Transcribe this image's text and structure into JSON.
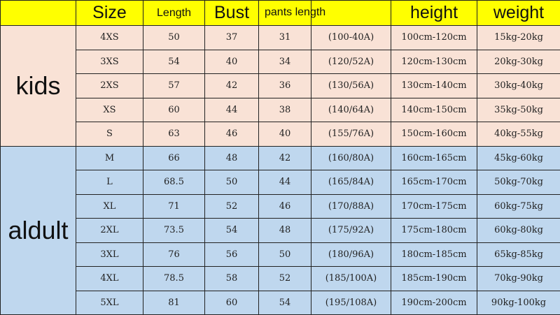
{
  "colors": {
    "header": "#ffff00",
    "kids": "#f9e2d6",
    "adult": "#bfd7ee"
  },
  "headers": {
    "size": "Size",
    "length": "Length",
    "bust": "Bust",
    "pants_length": "pants length",
    "height": "height",
    "weight": "weight"
  },
  "groups": {
    "kids": "kids",
    "adult": "aldult"
  },
  "kids_rows": [
    {
      "size": "4XS",
      "length": "50",
      "bust": "37",
      "pants": "31",
      "code": "(100-40A)",
      "height": "100cm-120cm",
      "weight": "15kg-20kg"
    },
    {
      "size": "3XS",
      "length": "54",
      "bust": "40",
      "pants": "34",
      "code": "(120/52A)",
      "height": "120cm-130cm",
      "weight": "20kg-30kg"
    },
    {
      "size": "2XS",
      "length": "57",
      "bust": "42",
      "pants": "36",
      "code": "(130/56A)",
      "height": "130cm-140cm",
      "weight": "30kg-40kg"
    },
    {
      "size": "XS",
      "length": "60",
      "bust": "44",
      "pants": "38",
      "code": "(140/64A)",
      "height": "140cm-150cm",
      "weight": "35kg-50kg"
    },
    {
      "size": "S",
      "length": "63",
      "bust": "46",
      "pants": "40",
      "code": "(155/76A)",
      "height": "150cm-160cm",
      "weight": "40kg-55kg"
    }
  ],
  "adult_rows": [
    {
      "size": "M",
      "length": "66",
      "bust": "48",
      "pants": "42",
      "code": "(160/80A)",
      "height": "160cm-165cm",
      "weight": "45kg-60kg"
    },
    {
      "size": "L",
      "length": "68.5",
      "bust": "50",
      "pants": "44",
      "code": "(165/84A)",
      "height": "165cm-170cm",
      "weight": "50kg-70kg"
    },
    {
      "size": "XL",
      "length": "71",
      "bust": "52",
      "pants": "46",
      "code": "(170/88A)",
      "height": "170cm-175cm",
      "weight": "60kg-75kg"
    },
    {
      "size": "2XL",
      "length": "73.5",
      "bust": "54",
      "pants": "48",
      "code": "(175/92A)",
      "height": "175cm-180cm",
      "weight": "60kg-80kg"
    },
    {
      "size": "3XL",
      "length": "76",
      "bust": "56",
      "pants": "50",
      "code": "(180/96A)",
      "height": "180cm-185cm",
      "weight": "65kg-85kg"
    },
    {
      "size": "4XL",
      "length": "78.5",
      "bust": "58",
      "pants": "52",
      "code": "(185/100A)",
      "height": "185cm-190cm",
      "weight": "70kg-90kg"
    },
    {
      "size": "5XL",
      "length": "81",
      "bust": "60",
      "pants": "54",
      "code": "(195/108A)",
      "height": "190cm-200cm",
      "weight": "90kg-100kg"
    }
  ]
}
